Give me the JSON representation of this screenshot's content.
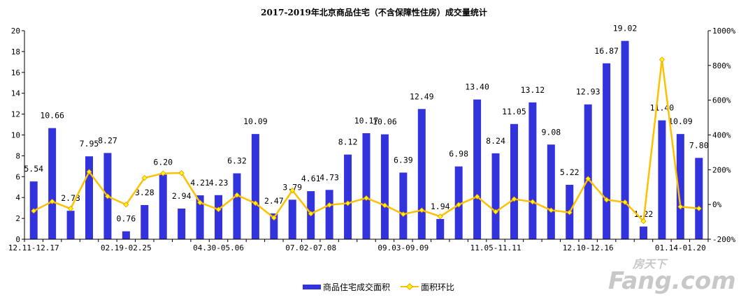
{
  "chart_data": {
    "type": "bar+line",
    "title": "2017-2019年北京商品住宅（不含保障性住房）成交量统计",
    "categories": [
      "12.11-12.17",
      "",
      "",
      "",
      "",
      "02.19-02.25",
      "",
      "",
      "",
      "",
      "04.30-05.06",
      "",
      "",
      "",
      "",
      "07.02-07.08",
      "",
      "",
      "",
      "",
      "09.03-09.09",
      "",
      "",
      "",
      "",
      "11.05-11.11",
      "",
      "",
      "",
      "",
      "12.10-12.16",
      "",
      "",
      "",
      "",
      "01.14-01.20",
      ""
    ],
    "series": [
      {
        "name": "商品住宅成交面积",
        "axis": "left",
        "type": "bar",
        "color": "#3333dd",
        "values": [
          5.54,
          10.66,
          2.73,
          7.95,
          8.27,
          0.76,
          3.28,
          6.2,
          2.94,
          4.21,
          4.23,
          6.32,
          10.09,
          2.47,
          3.79,
          4.61,
          4.73,
          8.12,
          10.17,
          10.06,
          6.39,
          12.49,
          1.94,
          6.98,
          13.4,
          8.24,
          11.05,
          13.12,
          9.08,
          5.22,
          12.93,
          16.87,
          19.02,
          1.22,
          11.4,
          10.09,
          7.8
        ],
        "labels": [
          "5.54",
          "10.66",
          "2.73",
          "7.95",
          "8.27",
          "0.76",
          "3.28",
          "6.20",
          "2.94",
          "4.21",
          "4.23",
          "6.32",
          "10.09",
          "2.47",
          "3.79",
          "4.61",
          "4.73",
          "8.12",
          "10.17",
          "10.06",
          "6.39",
          "12.49",
          "1.94",
          "6.98",
          "13.40",
          "8.24",
          "11.05",
          "13.12",
          "9.08",
          "5.22",
          "12.93",
          "16.87",
          "19.02",
          "1.22",
          "11.40",
          "10.09",
          "7.80"
        ]
      },
      {
        "name": "面积环比",
        "axis": "right",
        "type": "line",
        "color": "#ffc000",
        "marker_color": "#ffff00",
        "values": [
          -37,
          17,
          -24,
          188,
          47,
          -1,
          153,
          179,
          181,
          11,
          -29,
          54,
          7,
          -77,
          81,
          -53,
          -3,
          7,
          37,
          -5,
          -56,
          -33,
          -69,
          -1,
          45,
          -42,
          31,
          15,
          -33,
          -46,
          148,
          27,
          13,
          -96,
          834,
          -13,
          -23
        ]
      }
    ],
    "left_axis": {
      "ylim": [
        0,
        20
      ],
      "ticks": [
        "0",
        "2",
        "4",
        "6",
        "8",
        "10",
        "12",
        "14",
        "16",
        "18",
        "20"
      ]
    },
    "right_axis": {
      "ylim": [
        -200,
        1000
      ],
      "unit": "%",
      "ticks": [
        "-200%",
        "0%",
        "200%",
        "400%",
        "600%",
        "800%",
        "1000%"
      ]
    },
    "legend": {
      "placement": "bottom"
    },
    "grid": false
  },
  "watermark": "房天下 Fang.com"
}
